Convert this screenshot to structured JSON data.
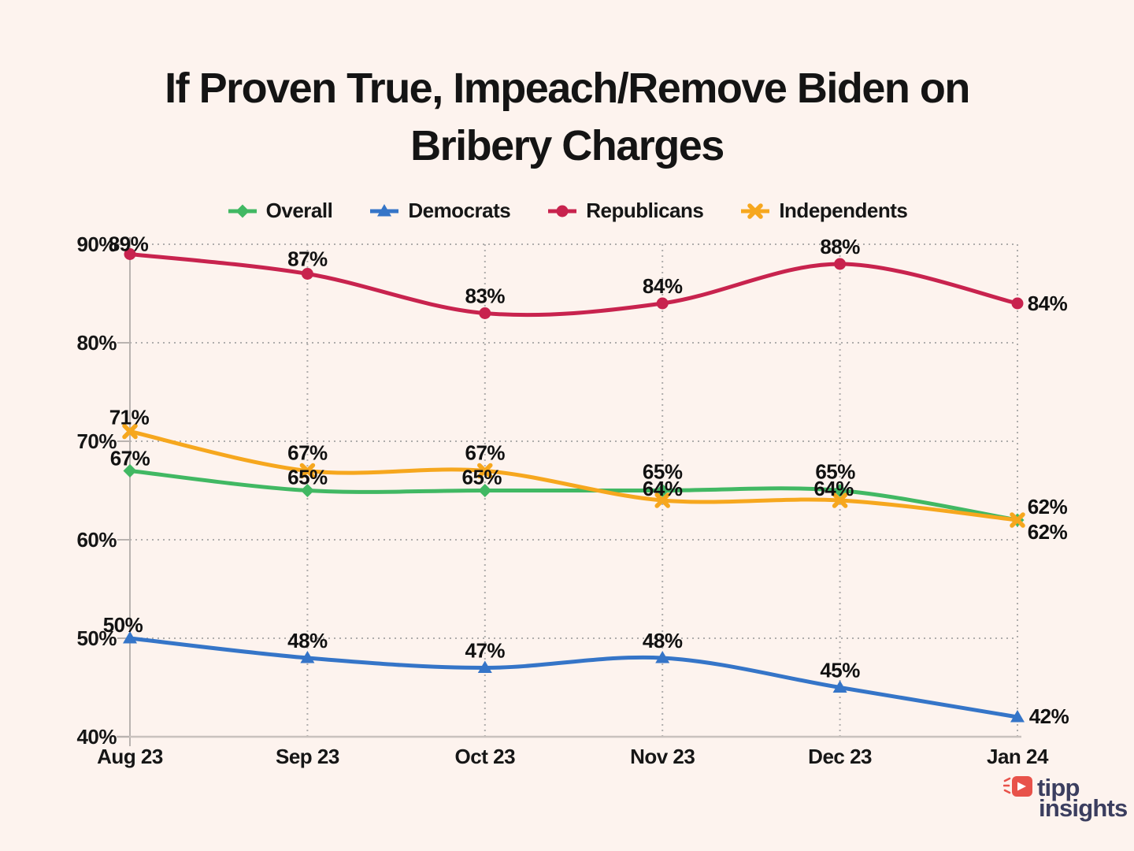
{
  "title": {
    "line1": "If Proven True, Impeach/Remove Biden on",
    "line2": "Bribery Charges"
  },
  "chart_data": {
    "type": "line",
    "x_labels": [
      "Aug 23",
      "Sep 23",
      "Oct 23",
      "Nov 23",
      "Dec 23",
      "Jan 24"
    ],
    "ylim": [
      40,
      90
    ],
    "y_ticks": [
      40,
      50,
      60,
      70,
      80,
      90
    ],
    "y_tick_labels": [
      "40%",
      "50%",
      "60%",
      "70%",
      "80%",
      "90%"
    ],
    "grid": "dotted",
    "legend_position": "top-center",
    "series": [
      {
        "name": "Overall",
        "color": "#41b863",
        "marker": "diamond",
        "values": [
          67,
          65,
          65,
          65,
          65,
          62
        ],
        "point_labels": [
          "67%",
          "65%",
          "65%",
          "65%",
          "65%",
          "62%"
        ],
        "label_offsets": [
          [
            0,
            -7
          ],
          [
            0,
            -8
          ],
          [
            -4,
            -8
          ],
          [
            0,
            -15
          ],
          [
            -6,
            -15
          ],
          [
            38,
            -8
          ]
        ]
      },
      {
        "name": "Democrats",
        "color": "#3575c8",
        "marker": "triangle",
        "values": [
          50,
          48,
          47,
          48,
          45,
          42
        ],
        "point_labels": [
          "50%",
          "48%",
          "47%",
          "48%",
          "45%",
          "42%"
        ],
        "label_offsets": [
          [
            -9,
            -8
          ],
          [
            0,
            -13
          ],
          [
            0,
            -13
          ],
          [
            0,
            -13
          ],
          [
            0,
            -13
          ],
          [
            40,
            8
          ]
        ]
      },
      {
        "name": "Republicans",
        "color": "#c8234e",
        "marker": "circle",
        "values": [
          89,
          87,
          83,
          84,
          88,
          84
        ],
        "point_labels": [
          "89%",
          "87%",
          "83%",
          "84%",
          "88%",
          "84%"
        ],
        "label_offsets": [
          [
            -2,
            -4
          ],
          [
            0,
            -10
          ],
          [
            0,
            -13
          ],
          [
            0,
            -13
          ],
          [
            0,
            -13
          ],
          [
            38,
            9
          ]
        ]
      },
      {
        "name": "Independents",
        "color": "#f6a71e",
        "marker": "xmark",
        "values": [
          71,
          67,
          67,
          64,
          64,
          62
        ],
        "point_labels": [
          "71%",
          "67%",
          "67%",
          "64%",
          "64%",
          "62%"
        ],
        "label_offsets": [
          [
            -1,
            -9
          ],
          [
            0,
            -14
          ],
          [
            0,
            -14
          ],
          [
            0,
            -6
          ],
          [
            -8,
            -6
          ],
          [
            38,
            24
          ]
        ]
      }
    ]
  },
  "branding": {
    "word1": "tipp",
    "word2": "insights",
    "accent_red": "#e8524a",
    "navy": "#3b3e5f"
  },
  "colors": {
    "background": "#fdf3ee",
    "grid": "#9b9b9b",
    "axis": "#c9c2be"
  }
}
